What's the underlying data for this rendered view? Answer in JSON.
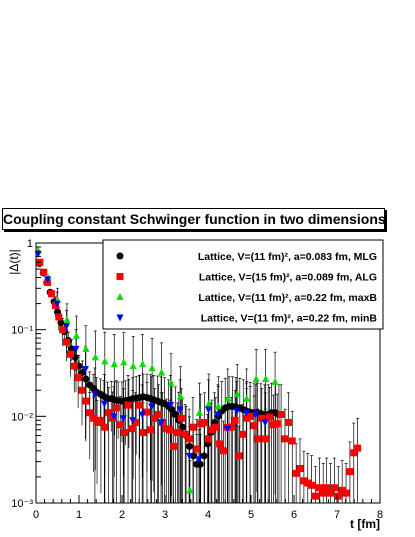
{
  "chart_data": {
    "type": "scatter",
    "title": "Coupling constant Schwinger function in two dimensions",
    "xlabel": "t [fm]",
    "ylabel": "|Δ(t)|",
    "y_scale": "log",
    "xlim": [
      0,
      8
    ],
    "ylim": [
      0.001,
      1
    ],
    "x_ticks": [
      "0",
      "1",
      "2",
      "3",
      "4",
      "5",
      "6",
      "7",
      "8"
    ],
    "y_ticks": [
      "10⁻³",
      "10⁻²",
      "10⁻¹",
      "1"
    ],
    "legend_position": "top-right",
    "series": [
      {
        "name": "Lattice, V=(11 fm)², a=0.083 fm, MLG",
        "marker": "circle",
        "color": "#000000",
        "x": [
          0.08,
          0.17,
          0.25,
          0.33,
          0.42,
          0.5,
          0.58,
          0.66,
          0.75,
          0.83,
          0.91,
          1.0,
          1.08,
          1.16,
          1.25,
          1.33,
          1.41,
          1.5,
          1.58,
          1.66,
          1.75,
          1.83,
          1.91,
          2.0,
          2.08,
          2.16,
          2.25,
          2.33,
          2.41,
          2.49,
          2.58,
          2.66,
          2.74,
          2.83,
          2.91,
          2.99,
          3.08,
          3.16,
          3.24,
          3.32,
          3.41,
          3.49,
          3.57,
          3.66,
          3.74,
          3.82,
          3.91,
          3.99,
          4.07,
          4.15,
          4.24,
          4.32,
          4.4,
          4.49,
          4.57,
          4.65,
          4.74,
          4.82,
          4.9,
          4.98,
          5.07,
          5.15,
          5.23,
          5.32,
          5.4,
          5.48,
          5.57,
          5.65
        ],
        "y": [
          0.58,
          0.45,
          0.35,
          0.27,
          0.21,
          0.16,
          0.12,
          0.095,
          0.075,
          0.06,
          0.048,
          0.038,
          0.032,
          0.027,
          0.023,
          0.021,
          0.019,
          0.018,
          0.017,
          0.016,
          0.016,
          0.0155,
          0.0152,
          0.015,
          0.0152,
          0.0155,
          0.016,
          0.0162,
          0.0165,
          0.0168,
          0.0165,
          0.016,
          0.0155,
          0.015,
          0.0145,
          0.014,
          0.013,
          0.012,
          0.0105,
          0.009,
          0.0075,
          0.006,
          0.0045,
          0.0035,
          0.0028,
          0.0028,
          0.0035,
          0.0048,
          0.0065,
          0.0085,
          0.01,
          0.0115,
          0.0125,
          0.013,
          0.013,
          0.0128,
          0.0125,
          0.012,
          0.0115,
          0.0112,
          0.011,
          0.011,
          0.0108,
          0.0105,
          0.0105,
          0.011,
          0.011,
          0.0105
        ]
      },
      {
        "name": "Lattice, V=(15 fm)², a=0.089 fm, ALG",
        "marker": "square",
        "color": "#ff0000",
        "x": [
          0.09,
          0.18,
          0.27,
          0.36,
          0.45,
          0.53,
          0.62,
          0.71,
          0.8,
          0.89,
          0.98,
          1.07,
          1.16,
          1.25,
          1.34,
          1.42,
          1.51,
          1.6,
          1.69,
          1.78,
          1.87,
          1.96,
          2.05,
          2.14,
          2.23,
          2.31,
          2.4,
          2.49,
          2.58,
          2.67,
          2.76,
          2.85,
          2.94,
          3.03,
          3.12,
          3.2,
          3.29,
          3.38,
          3.47,
          3.56,
          3.65,
          3.74,
          3.83,
          3.92,
          4.01,
          4.09,
          4.18,
          4.27,
          4.36,
          4.45,
          4.54,
          4.63,
          4.72,
          4.81,
          4.9,
          4.98,
          5.07,
          5.16,
          5.25,
          5.34,
          5.43,
          5.52,
          5.61,
          5.7,
          5.79,
          5.87,
          5.96,
          6.05,
          6.14,
          6.23,
          6.32,
          6.41,
          6.5,
          6.59,
          6.68,
          6.76,
          6.85,
          6.94,
          7.03,
          7.12,
          7.21,
          7.3,
          7.39,
          7.48
        ],
        "y": [
          0.6,
          0.46,
          0.35,
          0.26,
          0.19,
          0.14,
          0.1,
          0.072,
          0.052,
          0.038,
          0.028,
          0.02,
          0.015,
          0.011,
          0.0095,
          0.0085,
          0.009,
          0.0075,
          0.011,
          0.0095,
          0.0125,
          0.008,
          0.0065,
          0.0135,
          0.0072,
          0.0085,
          0.0135,
          0.0065,
          0.0112,
          0.007,
          0.0095,
          0.0105,
          0.0085,
          0.0072,
          0.007,
          0.0045,
          0.0065,
          0.0095,
          0.0062,
          0.0055,
          0.0075,
          0.0042,
          0.0082,
          0.0085,
          0.0055,
          0.007,
          0.0075,
          0.0048,
          0.004,
          0.0075,
          0.0075,
          0.009,
          0.0035,
          0.0062,
          0.0095,
          0.01,
          0.0078,
          0.0055,
          0.0095,
          0.0055,
          0.0098,
          0.008,
          0.0082,
          0.0105,
          0.0055,
          0.0085,
          0.0052,
          0.0022,
          0.0025,
          0.0018,
          0.0017,
          0.0016,
          0.0012,
          0.0015,
          0.0013,
          0.0015,
          0.0013,
          0.0015,
          0.0012,
          0.0014,
          0.0013,
          0.0023,
          0.0038,
          0.0043
        ]
      },
      {
        "name": "Lattice, V=(11 fm)², a=0.22 fm, maxB",
        "marker": "triangle-up",
        "color": "#00dd00",
        "x": [
          0.05,
          0.28,
          0.5,
          0.72,
          0.94,
          1.16,
          1.38,
          1.6,
          1.82,
          2.04,
          2.26,
          2.48,
          2.7,
          2.92,
          3.14,
          3.36,
          3.58,
          3.8,
          4.02,
          4.24,
          4.46,
          4.68,
          4.9,
          5.12,
          5.34,
          5.56
        ],
        "y": [
          0.82,
          0.4,
          0.22,
          0.13,
          0.085,
          0.06,
          0.048,
          0.043,
          0.04,
          0.042,
          0.038,
          0.04,
          0.036,
          0.032,
          0.024,
          0.017,
          0.0014,
          0.011,
          0.014,
          0.013,
          0.016,
          0.018,
          0.016,
          0.027,
          0.027,
          0.025
        ]
      },
      {
        "name": "Lattice, V=(11 fm)², a=0.22 fm, minB",
        "marker": "triangle-down",
        "color": "#0000ff",
        "x": [
          0.05,
          0.27,
          0.49,
          0.71,
          0.93,
          1.15,
          1.37,
          1.59,
          1.81,
          2.03,
          2.25,
          2.47,
          2.69,
          2.91,
          3.13,
          3.35,
          3.57,
          3.79,
          4.01,
          4.23,
          4.45,
          4.67,
          4.89,
          5.11,
          5.33
        ],
        "y": [
          0.75,
          0.38,
          0.2,
          0.11,
          0.06,
          0.035,
          0.018,
          0.014,
          0.01,
          0.0095,
          0.009,
          0.0105,
          0.013,
          0.0085,
          0.0135,
          0.012,
          0.0035,
          0.0032,
          0.012,
          0.0105,
          0.0072,
          0.0115,
          0.011,
          0.0105,
          0.0085
        ]
      }
    ]
  }
}
